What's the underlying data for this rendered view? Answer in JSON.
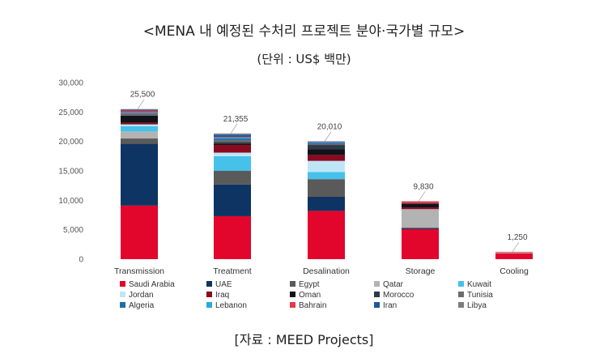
{
  "title": "<MENA 내 예정된 수처리 프로젝트 분야·국가별 규모>",
  "subtitle": "(단위 : US$ 백만)",
  "source": "[자료 : MEED Projects]",
  "chart_data": {
    "type": "bar",
    "stacked": true,
    "ylim": [
      0,
      30000
    ],
    "yticks": [
      "0",
      "5,000",
      "10,000",
      "15,000",
      "20,000",
      "25,000",
      "30,000"
    ],
    "categories": [
      "Transmission",
      "Treatment",
      "Desalination",
      "Storage",
      "Cooling"
    ],
    "totals": [
      25500,
      21355,
      20010,
      9830,
      1250
    ],
    "total_labels": [
      "25,500",
      "21,355",
      "20,010",
      "9,830",
      "1,250"
    ],
    "grid": false,
    "legend_position": "bottom",
    "series": [
      {
        "name": "Saudi Arabia",
        "color": "#e2062c",
        "values": [
          9100,
          7300,
          8200,
          5100,
          1000
        ]
      },
      {
        "name": "UAE",
        "color": "#0e3463",
        "values": [
          10500,
          5400,
          2400,
          200,
          0
        ]
      },
      {
        "name": "Egypt",
        "color": "#5a5a5a",
        "values": [
          900,
          2300,
          3000,
          0,
          0
        ]
      },
      {
        "name": "Qatar",
        "color": "#b3b3b3",
        "values": [
          1200,
          0,
          0,
          3200,
          150
        ]
      },
      {
        "name": "Kuwait",
        "color": "#45c1ea",
        "values": [
          900,
          2500,
          1200,
          0,
          0
        ]
      },
      {
        "name": "Jordan",
        "color": "#bfe6f7",
        "values": [
          300,
          600,
          1900,
          0,
          0
        ]
      },
      {
        "name": "Iraq",
        "color": "#8a0a1f",
        "values": [
          300,
          1300,
          1000,
          300,
          0
        ]
      },
      {
        "name": "Oman",
        "color": "#101318",
        "values": [
          1200,
          200,
          1000,
          600,
          0
        ]
      },
      {
        "name": "Morocco",
        "color": "#2e3a48",
        "values": [
          0,
          300,
          700,
          100,
          0
        ]
      },
      {
        "name": "Tunisia",
        "color": "#6b6b6b",
        "values": [
          300,
          400,
          150,
          0,
          0
        ]
      },
      {
        "name": "Algeria",
        "color": "#1f6fa8",
        "values": [
          100,
          200,
          200,
          0,
          0
        ]
      },
      {
        "name": "Lebanon",
        "color": "#29a9e0",
        "values": [
          100,
          150,
          100,
          0,
          0
        ]
      },
      {
        "name": "Bahrain",
        "color": "#e8364a",
        "values": [
          300,
          100,
          60,
          330,
          100
        ]
      },
      {
        "name": "Iran",
        "color": "#1a5a96",
        "values": [
          200,
          405,
          100,
          0,
          0
        ]
      },
      {
        "name": "Libya",
        "color": "#7d7d7d",
        "values": [
          100,
          200,
          0,
          0,
          0
        ]
      }
    ]
  }
}
